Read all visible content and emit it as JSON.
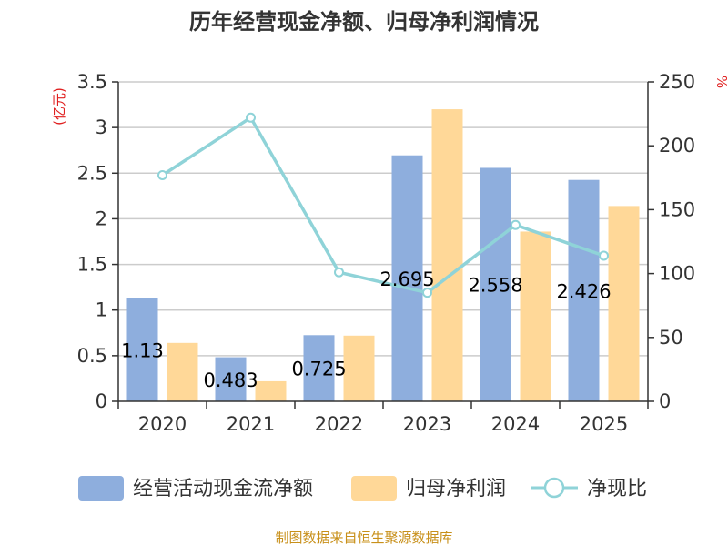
{
  "chart_data": {
    "type": "bar",
    "title": "历年经营现金净额、归母净利润情况",
    "categories": [
      "2020",
      "2021",
      "2022",
      "2023",
      "2024",
      "2025"
    ],
    "series": [
      {
        "name": "经营活动现金流净额",
        "type": "bar",
        "axis": "left",
        "color": "#8eaedd",
        "values": [
          1.13,
          0.483,
          0.725,
          2.695,
          2.558,
          2.426
        ],
        "data_labels": [
          "1.13",
          "0.483",
          "0.725",
          "2.695",
          "2.558",
          "2.426"
        ]
      },
      {
        "name": "归母净利润",
        "type": "bar",
        "axis": "left",
        "color": "#ffd898",
        "values": [
          0.64,
          0.22,
          0.72,
          3.2,
          1.86,
          2.14
        ]
      },
      {
        "name": "净现比",
        "type": "line",
        "axis": "right",
        "color": "#8fd3d8",
        "values": [
          177,
          222,
          101,
          85,
          138,
          114
        ]
      }
    ],
    "left_axis": {
      "unit": "(亿元)",
      "min": 0,
      "max": 3.5,
      "ticks": [
        "0",
        "0.5",
        "1",
        "1.5",
        "2",
        "2.5",
        "3",
        "3.5"
      ]
    },
    "right_axis": {
      "unit": "%",
      "min": 0,
      "max": 250,
      "ticks": [
        "0",
        "50",
        "100",
        "150",
        "200",
        "250"
      ]
    },
    "grid": true,
    "legend": "bottom"
  },
  "footer": {
    "source": "制图数据来自恒生聚源数据库"
  }
}
